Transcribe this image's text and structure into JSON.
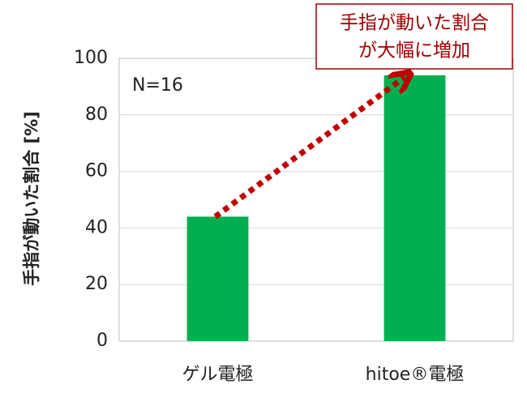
{
  "chart_data": {
    "type": "bar",
    "y_label": "手指が動いた割合 [%]",
    "categories": [
      "ゲル電極",
      "hitoe®電極"
    ],
    "values": [
      44,
      94
    ],
    "color": "#00b050",
    "ylim": [
      0,
      100
    ],
    "yticks": [
      0,
      20,
      40,
      60,
      80,
      100
    ],
    "grid": true,
    "annotations": [
      "N=16",
      "手指が動いた割合",
      "が大幅に増加"
    ]
  }
}
